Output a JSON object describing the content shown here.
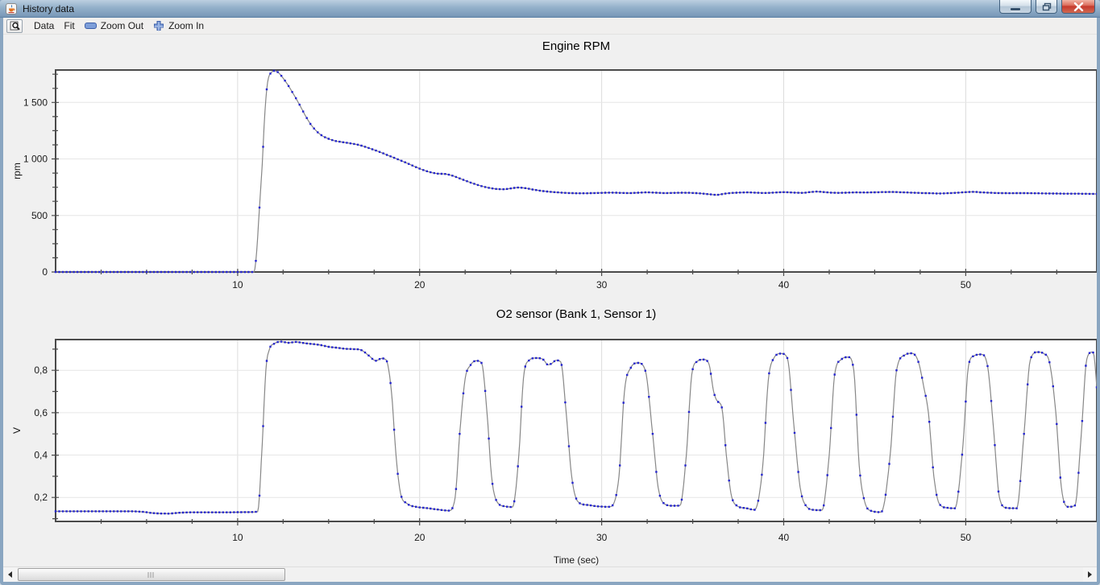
{
  "window": {
    "title": "History data",
    "buttons": [
      "minimize",
      "maximize",
      "close"
    ]
  },
  "toolbar": {
    "data_label": "Data",
    "fit_label": "Fit",
    "zoom_out_label": "Zoom Out",
    "zoom_in_label": "Zoom In"
  },
  "colors": {
    "line": "#878787",
    "marker": "#2424cf",
    "plot_border": "#4a4a4a",
    "grid_h": "#e6e6e6",
    "grid_v": "#dcdcdc",
    "titlebar_blue": "#93b0ca",
    "close_red": "#c6392c"
  },
  "bottom_axis_label": "Time (sec)",
  "chart_data": [
    {
      "type": "line",
      "title": "Engine RPM",
      "ylabel": "rpm",
      "xlabel": "",
      "xlim": [
        0,
        57.2
      ],
      "ylim": [
        0,
        1787
      ],
      "x_ticks": [
        {
          "v": 10,
          "label": "10"
        },
        {
          "v": 20,
          "label": "20"
        },
        {
          "v": 30,
          "label": "30"
        },
        {
          "v": 40,
          "label": "40"
        },
        {
          "v": 50,
          "label": "50"
        }
      ],
      "x_minor_step": 2.5,
      "y_ticks": [
        {
          "v": 0,
          "label": "0"
        },
        {
          "v": 500,
          "label": "500"
        },
        {
          "v": 1000,
          "label": "1 000"
        },
        {
          "v": 1500,
          "label": "1 500"
        }
      ],
      "y_minor_step": 125,
      "grid": true,
      "legend": "none",
      "marker_interval_sec": 0.2,
      "points": [
        [
          0,
          0
        ],
        [
          1,
          0
        ],
        [
          2,
          0
        ],
        [
          3,
          0
        ],
        [
          4,
          0
        ],
        [
          5,
          0
        ],
        [
          6,
          0
        ],
        [
          7,
          0
        ],
        [
          8,
          0
        ],
        [
          9,
          0
        ],
        [
          10,
          0
        ],
        [
          10.9,
          0
        ],
        [
          11.05,
          190
        ],
        [
          11.2,
          570
        ],
        [
          11.35,
          950
        ],
        [
          11.5,
          1420
        ],
        [
          11.65,
          1680
        ],
        [
          11.85,
          1765
        ],
        [
          12.05,
          1780
        ],
        [
          12.25,
          1762
        ],
        [
          12.5,
          1715
        ],
        [
          12.8,
          1645
        ],
        [
          13.1,
          1565
        ],
        [
          13.4,
          1480
        ],
        [
          13.7,
          1390
        ],
        [
          14,
          1310
        ],
        [
          14.3,
          1252
        ],
        [
          14.6,
          1210
        ],
        [
          15,
          1178
        ],
        [
          15.4,
          1158
        ],
        [
          15.8,
          1148
        ],
        [
          16.2,
          1138
        ],
        [
          16.6,
          1126
        ],
        [
          17,
          1108
        ],
        [
          17.4,
          1086
        ],
        [
          17.8,
          1062
        ],
        [
          18.2,
          1036
        ],
        [
          18.6,
          1010
        ],
        [
          19,
          984
        ],
        [
          19.4,
          956
        ],
        [
          19.8,
          928
        ],
        [
          20.2,
          902
        ],
        [
          20.6,
          882
        ],
        [
          21,
          870
        ],
        [
          21.4,
          867
        ],
        [
          21.8,
          852
        ],
        [
          22.2,
          828
        ],
        [
          22.6,
          803
        ],
        [
          23,
          780
        ],
        [
          23.4,
          760
        ],
        [
          23.8,
          745
        ],
        [
          24.2,
          735
        ],
        [
          24.6,
          732
        ],
        [
          25,
          739
        ],
        [
          25.4,
          747
        ],
        [
          25.8,
          742
        ],
        [
          26.2,
          730
        ],
        [
          26.6,
          720
        ],
        [
          27,
          712
        ],
        [
          27.5,
          705
        ],
        [
          28,
          700
        ],
        [
          28.5,
          697
        ],
        [
          29,
          696
        ],
        [
          29.5,
          698
        ],
        [
          30,
          700
        ],
        [
          30.5,
          702
        ],
        [
          31,
          700
        ],
        [
          31.5,
          698
        ],
        [
          32,
          701
        ],
        [
          32.5,
          704
        ],
        [
          33,
          701
        ],
        [
          33.5,
          698
        ],
        [
          34,
          700
        ],
        [
          34.5,
          701
        ],
        [
          35,
          699
        ],
        [
          35.5,
          694
        ],
        [
          36,
          686
        ],
        [
          36.3,
          682
        ],
        [
          36.7,
          691
        ],
        [
          37,
          697
        ],
        [
          37.5,
          702
        ],
        [
          38,
          704
        ],
        [
          38.5,
          701
        ],
        [
          39,
          699
        ],
        [
          39.5,
          703
        ],
        [
          40,
          706
        ],
        [
          40.5,
          703
        ],
        [
          41,
          700
        ],
        [
          41.4,
          706
        ],
        [
          41.8,
          711
        ],
        [
          42.2,
          707
        ],
        [
          42.6,
          702
        ],
        [
          43,
          700
        ],
        [
          43.5,
          702
        ],
        [
          44,
          704
        ],
        [
          44.5,
          703
        ],
        [
          45,
          705
        ],
        [
          45.5,
          707
        ],
        [
          46,
          708
        ],
        [
          46.5,
          705
        ],
        [
          47,
          702
        ],
        [
          47.5,
          699
        ],
        [
          48,
          697
        ],
        [
          48.5,
          695
        ],
        [
          49,
          697
        ],
        [
          49.5,
          701
        ],
        [
          50,
          706
        ],
        [
          50.4,
          709
        ],
        [
          50.8,
          705
        ],
        [
          51.2,
          702
        ],
        [
          51.6,
          699
        ],
        [
          52,
          698
        ],
        [
          52.5,
          697
        ],
        [
          53,
          698
        ],
        [
          53.5,
          697
        ],
        [
          54,
          696
        ],
        [
          54.5,
          695
        ],
        [
          55,
          694
        ],
        [
          55.5,
          693
        ],
        [
          56,
          693
        ],
        [
          56.5,
          692
        ],
        [
          57,
          691
        ],
        [
          57.2,
          690
        ]
      ]
    },
    {
      "type": "line",
      "title": "O2 sensor (Bank 1, Sensor 1)",
      "ylabel": "V",
      "xlabel": "Time (sec)",
      "xlim": [
        0,
        57.2
      ],
      "ylim": [
        0.087,
        0.945
      ],
      "x_ticks": [
        {
          "v": 10,
          "label": "10"
        },
        {
          "v": 20,
          "label": "20"
        },
        {
          "v": 30,
          "label": "30"
        },
        {
          "v": 40,
          "label": "40"
        },
        {
          "v": 50,
          "label": "50"
        }
      ],
      "x_minor_step": 2.5,
      "y_ticks": [
        {
          "v": 0.2,
          "label": "0,2"
        },
        {
          "v": 0.4,
          "label": "0,4"
        },
        {
          "v": 0.6,
          "label": "0,6"
        },
        {
          "v": 0.8,
          "label": "0,8"
        }
      ],
      "y_minor_step": 0.1,
      "grid": true,
      "legend": "none",
      "marker_interval_sec": 0.2,
      "points": [
        [
          0,
          0.135
        ],
        [
          1,
          0.135
        ],
        [
          2,
          0.135
        ],
        [
          3,
          0.135
        ],
        [
          4,
          0.135
        ],
        [
          4.8,
          0.132
        ],
        [
          5.4,
          0.126
        ],
        [
          6.2,
          0.124
        ],
        [
          6.8,
          0.128
        ],
        [
          7.5,
          0.13
        ],
        [
          8.5,
          0.13
        ],
        [
          9.5,
          0.13
        ],
        [
          10.5,
          0.131
        ],
        [
          11.1,
          0.133
        ],
        [
          11.35,
          0.45
        ],
        [
          11.55,
          0.8
        ],
        [
          11.75,
          0.9
        ],
        [
          12,
          0.925
        ],
        [
          12.4,
          0.935
        ],
        [
          12.8,
          0.93
        ],
        [
          13.2,
          0.934
        ],
        [
          13.6,
          0.929
        ],
        [
          14,
          0.925
        ],
        [
          14.5,
          0.92
        ],
        [
          15,
          0.911
        ],
        [
          15.5,
          0.906
        ],
        [
          16,
          0.901
        ],
        [
          16.4,
          0.9
        ],
        [
          16.8,
          0.895
        ],
        [
          17.2,
          0.87
        ],
        [
          17.6,
          0.845
        ],
        [
          17.9,
          0.856
        ],
        [
          18.15,
          0.85
        ],
        [
          18.45,
          0.7
        ],
        [
          18.7,
          0.4
        ],
        [
          18.95,
          0.22
        ],
        [
          19.3,
          0.172
        ],
        [
          19.8,
          0.156
        ],
        [
          20.4,
          0.15
        ],
        [
          21,
          0.143
        ],
        [
          21.6,
          0.138
        ],
        [
          21.95,
          0.2
        ],
        [
          22.2,
          0.5
        ],
        [
          22.5,
          0.76
        ],
        [
          22.8,
          0.825
        ],
        [
          23.1,
          0.845
        ],
        [
          23.4,
          0.835
        ],
        [
          23.7,
          0.6
        ],
        [
          23.95,
          0.3
        ],
        [
          24.25,
          0.18
        ],
        [
          24.7,
          0.158
        ],
        [
          25.1,
          0.155
        ],
        [
          25.45,
          0.4
        ],
        [
          25.7,
          0.76
        ],
        [
          26,
          0.846
        ],
        [
          26.4,
          0.858
        ],
        [
          26.8,
          0.85
        ],
        [
          27.05,
          0.826
        ],
        [
          27.25,
          0.832
        ],
        [
          27.5,
          0.847
        ],
        [
          27.75,
          0.84
        ],
        [
          28.05,
          0.6
        ],
        [
          28.35,
          0.3
        ],
        [
          28.7,
          0.18
        ],
        [
          29.2,
          0.165
        ],
        [
          29.8,
          0.158
        ],
        [
          30.4,
          0.156
        ],
        [
          30.95,
          0.3
        ],
        [
          31.25,
          0.7
        ],
        [
          31.6,
          0.812
        ],
        [
          32,
          0.835
        ],
        [
          32.4,
          0.798
        ],
        [
          32.8,
          0.5
        ],
        [
          33.1,
          0.25
        ],
        [
          33.45,
          0.17
        ],
        [
          33.9,
          0.161
        ],
        [
          34.3,
          0.162
        ],
        [
          34.65,
          0.4
        ],
        [
          34.95,
          0.78
        ],
        [
          35.25,
          0.842
        ],
        [
          35.6,
          0.851
        ],
        [
          35.9,
          0.828
        ],
        [
          36.15,
          0.7
        ],
        [
          36.35,
          0.655
        ],
        [
          36.6,
          0.625
        ],
        [
          36.85,
          0.4
        ],
        [
          37.1,
          0.22
        ],
        [
          37.45,
          0.16
        ],
        [
          37.9,
          0.15
        ],
        [
          38.4,
          0.142
        ],
        [
          38.85,
          0.35
        ],
        [
          39.15,
          0.75
        ],
        [
          39.45,
          0.856
        ],
        [
          39.85,
          0.879
        ],
        [
          40.2,
          0.858
        ],
        [
          40.55,
          0.55
        ],
        [
          40.9,
          0.25
        ],
        [
          41.25,
          0.158
        ],
        [
          41.7,
          0.141
        ],
        [
          42.1,
          0.14
        ],
        [
          42.5,
          0.4
        ],
        [
          42.8,
          0.78
        ],
        [
          43.15,
          0.85
        ],
        [
          43.55,
          0.862
        ],
        [
          43.85,
          0.8
        ],
        [
          44.15,
          0.35
        ],
        [
          44.45,
          0.18
        ],
        [
          44.85,
          0.136
        ],
        [
          45.35,
          0.131
        ],
        [
          45.85,
          0.4
        ],
        [
          46.2,
          0.8
        ],
        [
          46.65,
          0.872
        ],
        [
          47.05,
          0.88
        ],
        [
          47.4,
          0.84
        ],
        [
          47.7,
          0.72
        ],
        [
          47.95,
          0.6
        ],
        [
          48.25,
          0.3
        ],
        [
          48.55,
          0.17
        ],
        [
          49,
          0.151
        ],
        [
          49.4,
          0.149
        ],
        [
          49.85,
          0.45
        ],
        [
          50.15,
          0.82
        ],
        [
          50.45,
          0.868
        ],
        [
          50.85,
          0.875
        ],
        [
          51.2,
          0.82
        ],
        [
          51.55,
          0.5
        ],
        [
          51.85,
          0.2
        ],
        [
          52.25,
          0.151
        ],
        [
          52.8,
          0.149
        ],
        [
          53.2,
          0.5
        ],
        [
          53.55,
          0.85
        ],
        [
          53.95,
          0.886
        ],
        [
          54.3,
          0.878
        ],
        [
          54.6,
          0.838
        ],
        [
          54.95,
          0.6
        ],
        [
          55.25,
          0.25
        ],
        [
          55.65,
          0.156
        ],
        [
          56,
          0.162
        ],
        [
          56.35,
          0.5
        ],
        [
          56.65,
          0.852
        ],
        [
          56.95,
          0.886
        ],
        [
          57.05,
          0.87
        ],
        [
          57.2,
          0.72
        ]
      ]
    }
  ]
}
